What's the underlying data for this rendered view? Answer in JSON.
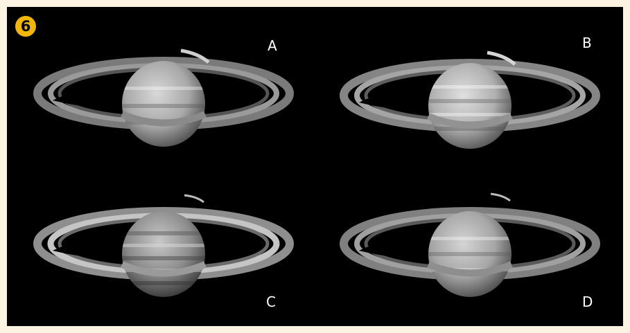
{
  "badge": {
    "label": "6",
    "color": "#f2b705"
  },
  "panels": [
    {
      "label": "A"
    },
    {
      "label": "B"
    },
    {
      "label": "C"
    },
    {
      "label": "D"
    }
  ],
  "colors": {
    "background": "#000000",
    "frame": "#fdf3e3",
    "label_text": "#ffffff"
  }
}
